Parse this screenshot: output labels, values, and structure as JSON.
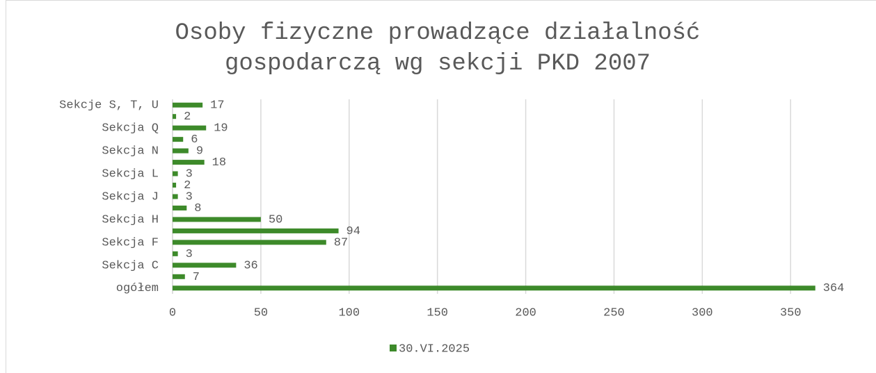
{
  "chart_data": {
    "type": "hbar",
    "title": "Osoby fizyczne prowadzące działalność gospodarczą wg sekcji PKD 2007",
    "categories": [
      "ogółem",
      null,
      "Sekcja C",
      null,
      "Sekcja F",
      null,
      "Sekcja H",
      null,
      "Sekcja J",
      null,
      "Sekcja L",
      null,
      "Sekcja N",
      null,
      "Sekcja Q",
      null,
      "Sekcje S, T, U"
    ],
    "series": [
      {
        "name": "30.VI.2025",
        "color": "#3d8a2a",
        "values": [
          364,
          7,
          36,
          3,
          87,
          94,
          50,
          8,
          3,
          2,
          3,
          18,
          9,
          6,
          19,
          2,
          17
        ]
      }
    ],
    "xlim": [
      0,
      370
    ],
    "xticks": [
      0,
      50,
      100,
      150,
      200,
      250,
      300,
      350
    ],
    "grid": true,
    "legend": "bottom"
  }
}
